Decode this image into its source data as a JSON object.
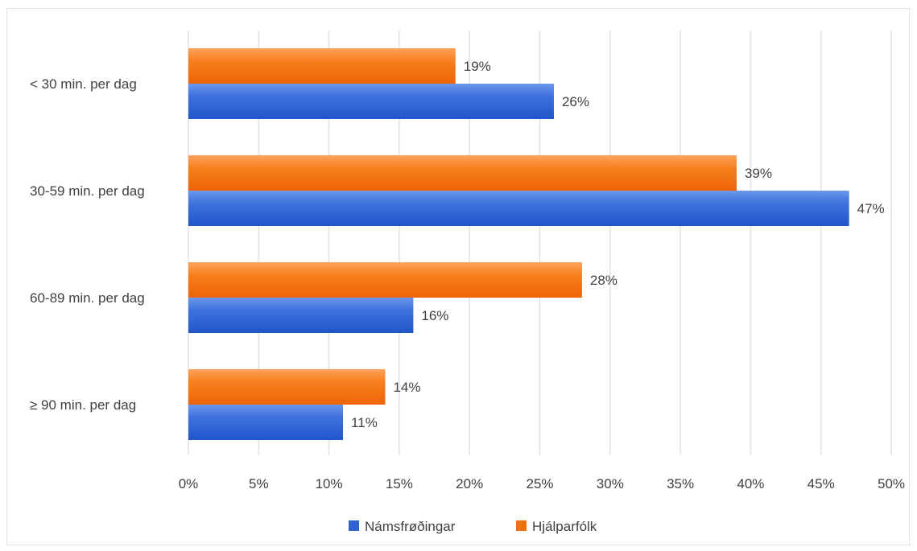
{
  "chart_data": {
    "type": "bar",
    "orientation": "horizontal",
    "categories": [
      "< 30 min. per dag",
      "30-59 min. per dag",
      "60-89 min. per dag",
      "≥ 90 min. per dag"
    ],
    "series": [
      {
        "name": "Hjálparfólk",
        "values": [
          19,
          39,
          28,
          14
        ],
        "color": "#f36f10"
      },
      {
        "name": "Námsfrøðingar",
        "values": [
          26,
          47,
          16,
          11
        ],
        "color": "#2f63d1"
      }
    ],
    "legend_order": [
      "Námsfrøðingar",
      "Hjálparfólk"
    ],
    "xlim": [
      0,
      50
    ],
    "x_ticks": [
      0,
      5,
      10,
      15,
      20,
      25,
      30,
      35,
      40,
      45,
      50
    ],
    "tick_suffix": "%",
    "value_suffix": "%",
    "grid": true,
    "legend_position": "bottom"
  }
}
